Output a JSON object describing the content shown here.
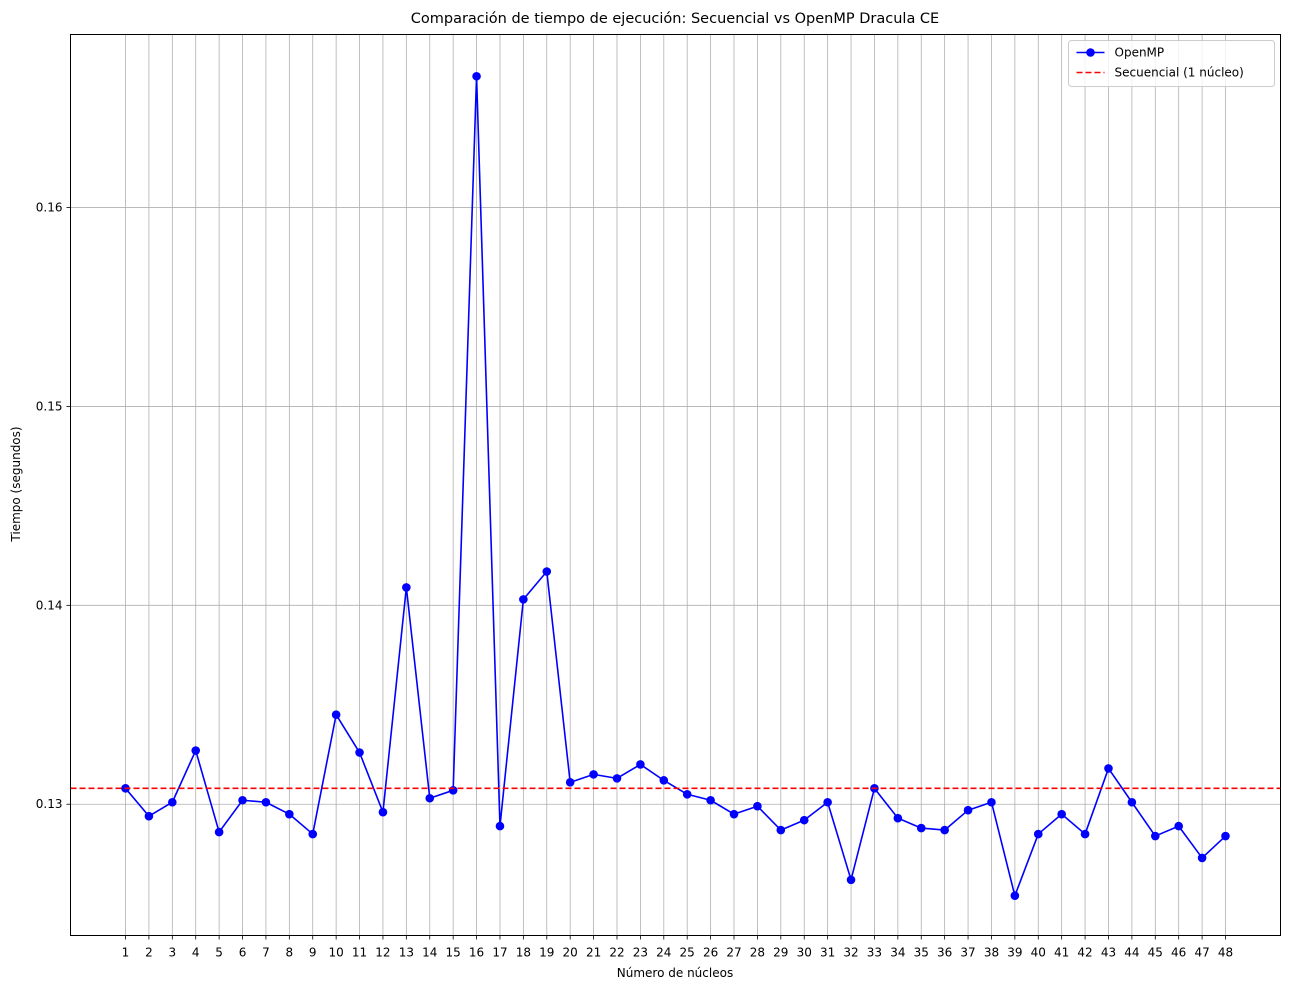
{
  "chart_data": {
    "type": "line",
    "title": "Comparación de tiempo de ejecución: Secuencial vs OpenMP Dracula CE",
    "xlabel": "Número de núcleos",
    "ylabel": "Tiempo (segundos)",
    "x": [
      1,
      2,
      3,
      4,
      5,
      6,
      7,
      8,
      9,
      10,
      11,
      12,
      13,
      14,
      15,
      16,
      17,
      18,
      19,
      20,
      21,
      22,
      23,
      24,
      25,
      26,
      27,
      28,
      29,
      30,
      31,
      32,
      33,
      34,
      35,
      36,
      37,
      38,
      39,
      40,
      41,
      42,
      43,
      44,
      45,
      46,
      47,
      48
    ],
    "xlim": [
      -1.35,
      50.35
    ],
    "ylim": [
      0.1234,
      0.1687
    ],
    "yticks": [
      0.13,
      0.14,
      0.15,
      0.16
    ],
    "ytick_labels": [
      "0.13",
      "0.14",
      "0.15",
      "0.16"
    ],
    "grid": true,
    "legend_position": "top-right",
    "series": [
      {
        "name": "OpenMP",
        "style": "solid-line-circle-markers",
        "color": "#0000ff",
        "values": [
          0.1308,
          0.1294,
          0.1301,
          0.1327,
          0.1286,
          0.1302,
          0.1301,
          0.1295,
          0.1285,
          0.1345,
          0.1326,
          0.1296,
          0.1409,
          0.1303,
          0.1307,
          0.1666,
          0.1289,
          0.1403,
          0.1417,
          0.1311,
          0.1315,
          0.1313,
          0.132,
          0.1312,
          0.1305,
          0.1302,
          0.1295,
          0.1299,
          0.1287,
          0.1292,
          0.1301,
          0.1262,
          0.1308,
          0.1293,
          0.1288,
          0.1287,
          0.1297,
          0.1301,
          0.1254,
          0.1285,
          0.1295,
          0.1285,
          0.1318,
          0.1301,
          0.1284,
          0.1289,
          0.1273,
          0.1284
        ]
      },
      {
        "name": "Secuencial (1 núcleo)",
        "style": "dashed-horizontal-line",
        "color": "#ff0000",
        "value": 0.1308
      }
    ]
  }
}
